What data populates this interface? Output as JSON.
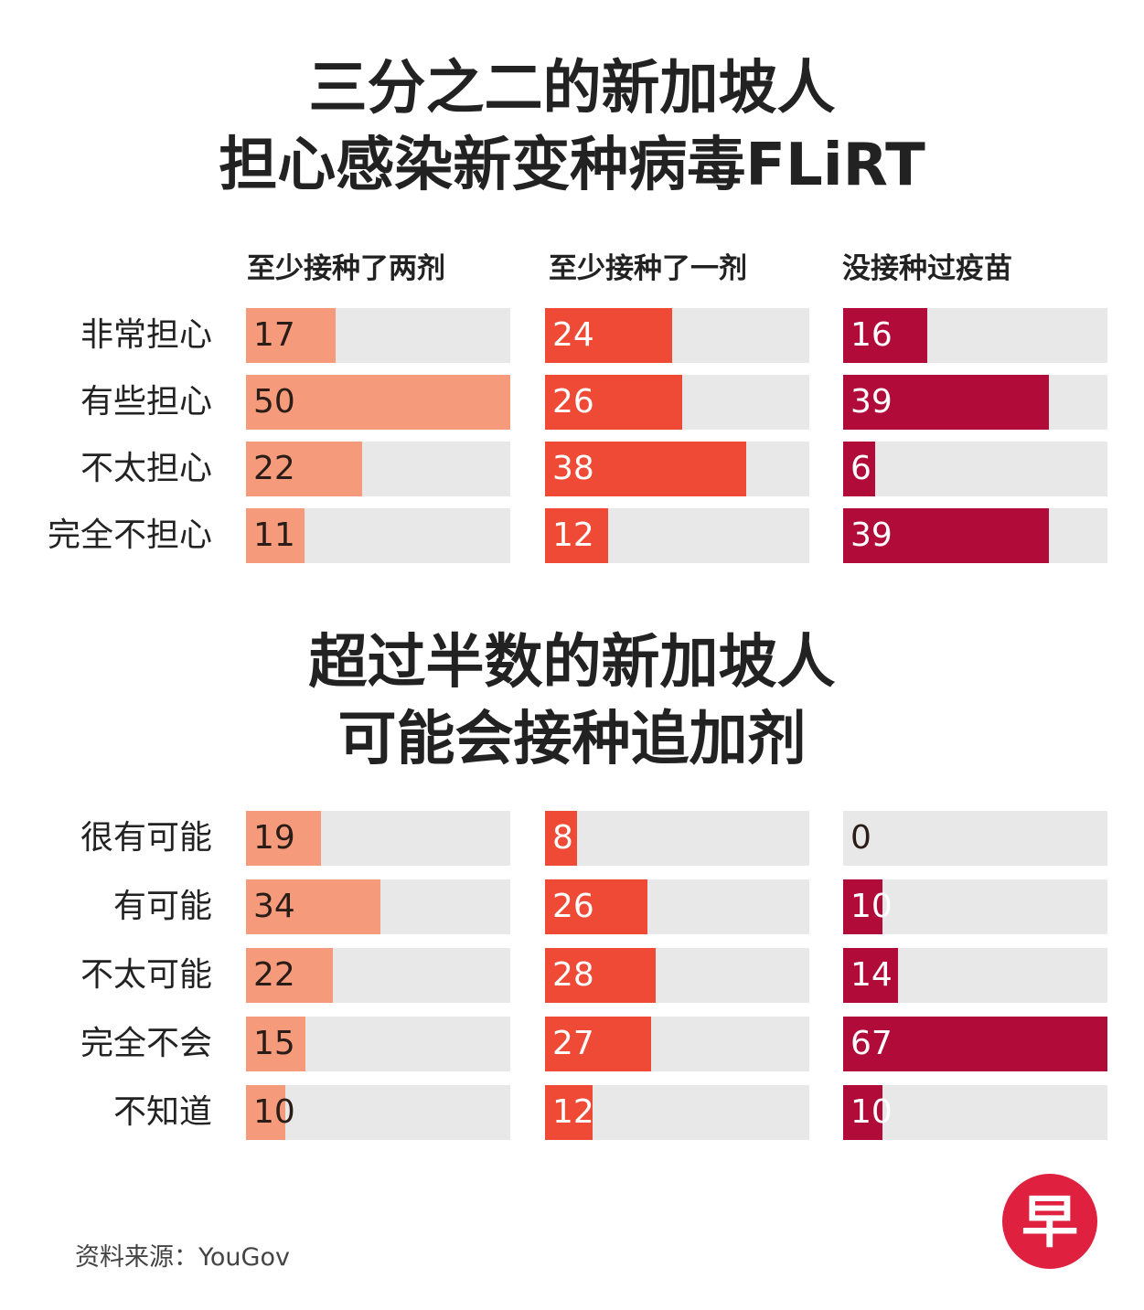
{
  "title1": {
    "line1": "三分之二的新加坡人",
    "line2": "担心感染新变种病毒FLiRT"
  },
  "title2": {
    "line1": "超过半数的新加坡人",
    "line2": "可能会接种追加剂"
  },
  "columns": [
    "至少接种了两剂",
    "至少接种了一剂",
    "没接种过疫苗"
  ],
  "colors": {
    "two_doses": "#f59b7c",
    "one_dose": "#ee4a35",
    "unvaccinated": "#b10b3a",
    "track": "#e8e8e9"
  },
  "source": "资料来源：YouGov",
  "logo_char": "早",
  "chart_data": [
    {
      "type": "bar",
      "title": "三分之二的新加坡人担心感染新变种病毒FLiRT",
      "categories": [
        "非常担心",
        "有些担心",
        "不太担心",
        "完全不担心"
      ],
      "xlim": [
        0,
        50
      ],
      "series": [
        {
          "name": "至少接种了两剂",
          "values": [
            17,
            50,
            22,
            11
          ]
        },
        {
          "name": "至少接种了一剂",
          "values": [
            24,
            26,
            38,
            12
          ]
        },
        {
          "name": "没接种过疫苗",
          "values": [
            16,
            39,
            6,
            39
          ]
        }
      ]
    },
    {
      "type": "bar",
      "title": "超过半数的新加坡人可能会接种追加剂",
      "categories": [
        "很有可能",
        "有可能",
        "不太可能",
        "完全不会",
        "不知道"
      ],
      "xlim": [
        0,
        67
      ],
      "series": [
        {
          "name": "至少接种了两剂",
          "values": [
            19,
            34,
            22,
            15,
            10
          ]
        },
        {
          "name": "至少接种了一剂",
          "values": [
            8,
            26,
            28,
            27,
            12
          ]
        },
        {
          "name": "没接种过疫苗",
          "values": [
            0,
            10,
            14,
            67,
            10
          ]
        }
      ]
    }
  ]
}
